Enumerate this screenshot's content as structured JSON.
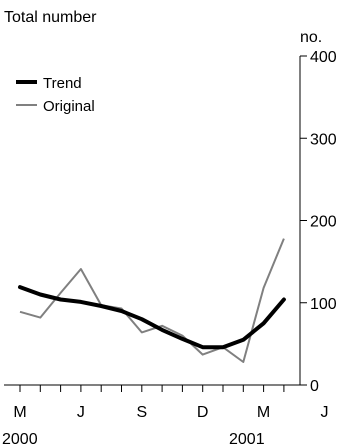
{
  "chart_data": {
    "type": "line",
    "title": "Total number",
    "ylabel": "no.",
    "ylim": [
      0,
      400
    ],
    "yticks": [
      "0",
      "100",
      "200",
      "300",
      "400"
    ],
    "x": [
      "2000-05",
      "2000-06",
      "2000-07",
      "2000-08",
      "2000-09",
      "2000-10",
      "2000-11",
      "2000-12",
      "2001-01",
      "2001-02",
      "2001-03",
      "2001-04",
      "2001-05",
      "2001-06"
    ],
    "xtick_labels": [
      "M",
      "J",
      "S",
      "D",
      "M",
      "J"
    ],
    "year_labels": [
      "2000",
      "2001"
    ],
    "legend_position": "top-left",
    "series": [
      {
        "name": "Trend",
        "color": "#000000",
        "values": [
          119,
          110,
          104,
          101,
          96,
          90,
          80,
          67,
          56,
          46,
          46,
          55,
          75,
          104
        ]
      },
      {
        "name": "Original",
        "color": "#808080",
        "values": [
          89,
          82,
          112,
          141,
          97,
          93,
          64,
          72,
          60,
          37,
          46,
          28,
          118,
          178
        ]
      }
    ]
  }
}
